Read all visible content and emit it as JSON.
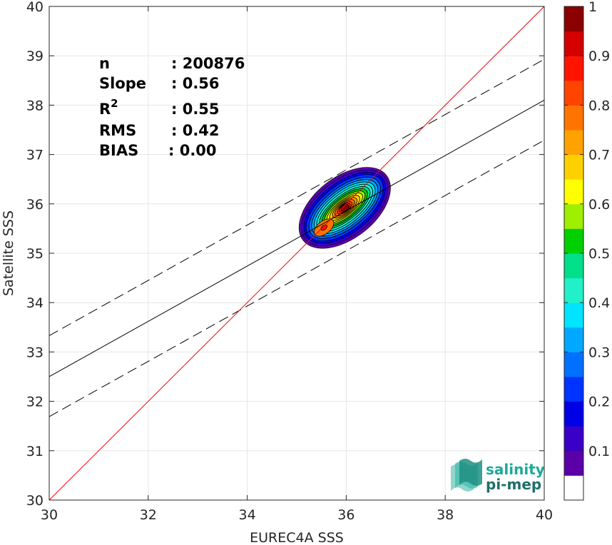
{
  "chart_data": {
    "type": "heatmap",
    "title": "",
    "xlabel": "EUREC4A SSS",
    "ylabel": "Satellite SSS",
    "xlim": [
      30,
      40
    ],
    "ylim": [
      30,
      40
    ],
    "xticks": [
      "30",
      "32",
      "34",
      "36",
      "38",
      "40"
    ],
    "yticks": [
      "30",
      "31",
      "32",
      "33",
      "34",
      "35",
      "36",
      "37",
      "38",
      "39",
      "40"
    ],
    "grid": true,
    "stats": [
      {
        "label": "n",
        "value": ": 200876"
      },
      {
        "label": "Slope",
        "value": ": 0.56"
      },
      {
        "label": "R",
        "sup": "2",
        "value": ": 0.55"
      },
      {
        "label": "RMS",
        "value": ": 0.42"
      },
      {
        "label": "BIAS",
        "value": ": 0.00"
      }
    ],
    "lines": {
      "identity": {
        "slope": 1,
        "intercept": 0,
        "color": "#ff0000"
      },
      "fit": {
        "slope": 0.56,
        "intercept": 15.7,
        "color": "#000000"
      },
      "fit_upper": {
        "slope": 0.56,
        "intercept": 16.53,
        "color": "#000000",
        "dash": true
      },
      "fit_lower": {
        "slope": 0.56,
        "intercept": 14.89,
        "color": "#000000",
        "dash": true
      }
    },
    "density": {
      "center": [
        35.97,
        35.92
      ],
      "secondary_peak": [
        35.55,
        35.52
      ],
      "major_axis_angle_deg": 38,
      "levels": [
        {
          "level": 0.05,
          "color": "#5b00a8",
          "semi_major": 1.07,
          "semi_minor": 0.62
        },
        {
          "level": 0.1,
          "color": "#3a00c8",
          "semi_major": 1.02,
          "semi_minor": 0.56
        },
        {
          "level": 0.15,
          "color": "#0000e6",
          "semi_major": 0.97,
          "semi_minor": 0.51
        },
        {
          "level": 0.2,
          "color": "#0033ff",
          "semi_major": 0.92,
          "semi_minor": 0.46
        },
        {
          "level": 0.25,
          "color": "#0070ff",
          "semi_major": 0.86,
          "semi_minor": 0.41
        },
        {
          "level": 0.3,
          "color": "#00a8ff",
          "semi_major": 0.8,
          "semi_minor": 0.37
        },
        {
          "level": 0.35,
          "color": "#00e4ff",
          "semi_major": 0.74,
          "semi_minor": 0.33
        },
        {
          "level": 0.4,
          "color": "#22f0c8",
          "semi_major": 0.68,
          "semi_minor": 0.29
        },
        {
          "level": 0.45,
          "color": "#00e08a",
          "semi_major": 0.62,
          "semi_minor": 0.25
        },
        {
          "level": 0.5,
          "color": "#00d000",
          "semi_major": 0.56,
          "semi_minor": 0.22
        },
        {
          "level": 0.55,
          "color": "#a0ee00",
          "semi_major": 0.5,
          "semi_minor": 0.19
        },
        {
          "level": 0.6,
          "color": "#ffff00",
          "semi_major": 0.44,
          "semi_minor": 0.16
        },
        {
          "level": 0.65,
          "color": "#ffd000",
          "semi_major": 0.37,
          "semi_minor": 0.14
        },
        {
          "level": 0.7,
          "color": "#ffa200",
          "semi_major": 0.3,
          "semi_minor": 0.12
        },
        {
          "level": 0.75,
          "color": "#ff7400",
          "semi_major": 0.24,
          "semi_minor": 0.1
        },
        {
          "level": 0.8,
          "color": "#ff4400",
          "semi_major": 0.18,
          "semi_minor": 0.08
        },
        {
          "level": 0.85,
          "color": "#ff1400",
          "semi_major": 0.13,
          "semi_minor": 0.07
        },
        {
          "level": 0.9,
          "color": "#d40000",
          "semi_major": 0.09,
          "semi_minor": 0.055
        }
      ]
    },
    "colorbar": {
      "min": 0,
      "max": 1,
      "ticks": [
        "0.1",
        "0.2",
        "0.3",
        "0.4",
        "0.5",
        "0.6",
        "0.7",
        "0.8",
        "0.9",
        "1"
      ],
      "tick_values": [
        0.1,
        0.2,
        0.3,
        0.4,
        0.5,
        0.6,
        0.7,
        0.8,
        0.9,
        1.0
      ],
      "colors": [
        "#ffffff",
        "#5b00a8",
        "#3a00c8",
        "#0000e6",
        "#0033ff",
        "#0070ff",
        "#00a8ff",
        "#00e4ff",
        "#22f0c8",
        "#00e08a",
        "#00d000",
        "#a0ee00",
        "#ffff00",
        "#ffd000",
        "#ffa200",
        "#ff7400",
        "#ff4400",
        "#ff1400",
        "#d40000",
        "#8b0000"
      ]
    }
  },
  "logo": {
    "line1": "salinity",
    "line2": "pi-mep",
    "color_line1": "#1fa89a",
    "color_line2": "#1f6f6a",
    "icon": "waves-logo-icon"
  }
}
